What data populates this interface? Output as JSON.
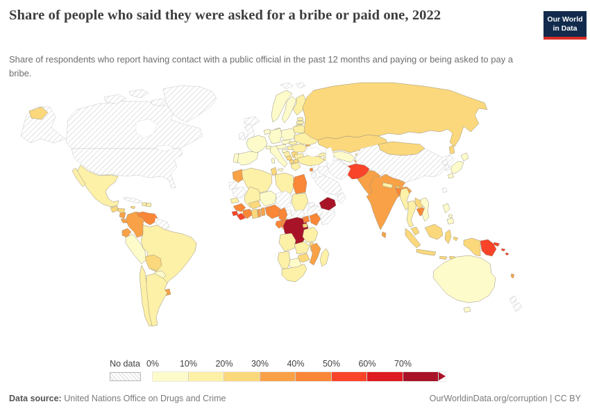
{
  "header": {
    "title": "Share of people who said they were asked for a bribe or paid one, 2022",
    "subtitle": "Share of respondents who report having contact with a public official in the past 12 months and paying or being asked to pay a bribe.",
    "logo": {
      "line1": "Our World",
      "line2": "in Data",
      "bg": "#122B4D",
      "accent": "#D92D27"
    }
  },
  "footer": {
    "source_label": "Data source:",
    "source_value": "United Nations Office on Drugs and Crime",
    "right_text": "OurWorldinData.org/corruption | CC BY"
  },
  "chart_data": {
    "type": "heatmap",
    "subtype": "choropleth-world-map",
    "title": "Share of people who said they were asked for a bribe or paid one, 2022",
    "unit": "%",
    "legend": {
      "position": "bottom",
      "no_data_label": "No data",
      "ticks": [
        "0%",
        "10%",
        "20%",
        "30%",
        "40%",
        "50%",
        "60%",
        "70%"
      ],
      "bins": [
        {
          "label": "0-10%",
          "color": "#FEFBCB"
        },
        {
          "label": "10-20%",
          "color": "#FDF0A7"
        },
        {
          "label": "20-30%",
          "color": "#FBD87B"
        },
        {
          "label": "30-40%",
          "color": "#F9A147"
        },
        {
          "label": "40-50%",
          "color": "#FA8637"
        },
        {
          "label": "50-60%",
          "color": "#F94429"
        },
        {
          "label": "60-70%",
          "color": "#DE1B21"
        },
        {
          "label": "70%+",
          "color": "#A91328"
        }
      ]
    },
    "regions": [
      {
        "name": "Canada",
        "bin": "No data"
      },
      {
        "name": "United States",
        "bin": "No data"
      },
      {
        "name": "Greenland",
        "bin": "No data"
      },
      {
        "name": "Iceland",
        "bin": "No data"
      },
      {
        "name": "Svalbard",
        "bin": "No data"
      },
      {
        "name": "United Kingdom",
        "bin": "No data"
      },
      {
        "name": "Ireland",
        "bin": "No data"
      },
      {
        "name": "Cuba",
        "bin": "No data"
      },
      {
        "name": "Guyana",
        "bin": "No data"
      },
      {
        "name": "Western Sahara",
        "bin": "No data"
      },
      {
        "name": "Mauritania",
        "bin": "No data"
      },
      {
        "name": "Chad",
        "bin": "No data"
      },
      {
        "name": "Central African Republic",
        "bin": "No data"
      },
      {
        "name": "South Sudan",
        "bin": "No data"
      },
      {
        "name": "Eritrea",
        "bin": "No data"
      },
      {
        "name": "Ethiopia",
        "bin": "No data"
      },
      {
        "name": "Somalia",
        "bin": "No data"
      },
      {
        "name": "Syria",
        "bin": "No data"
      },
      {
        "name": "Israel",
        "bin": "No data"
      },
      {
        "name": "Iraq",
        "bin": "No data"
      },
      {
        "name": "Saudi Arabia",
        "bin": "No data"
      },
      {
        "name": "Oman",
        "bin": "No data"
      },
      {
        "name": "Iran",
        "bin": "No data"
      },
      {
        "name": "Turkmenistan",
        "bin": "No data"
      },
      {
        "name": "China",
        "bin": "No data"
      },
      {
        "name": "North Korea",
        "bin": "No data"
      },
      {
        "name": "South Korea",
        "bin": "No data"
      },
      {
        "name": "Taiwan",
        "bin": "No data"
      },
      {
        "name": "New Zealand",
        "bin": "No data"
      },
      {
        "name": "Peru",
        "bin": "0-10%"
      },
      {
        "name": "Paraguay",
        "bin": "0-10%"
      },
      {
        "name": "Niger",
        "bin": "0-10%"
      },
      {
        "name": "Botswana",
        "bin": "0-10%"
      },
      {
        "name": "Vietnam",
        "bin": "0-10%"
      },
      {
        "name": "Philippines",
        "bin": "0-10%"
      },
      {
        "name": "Japan",
        "bin": "0-10%"
      },
      {
        "name": "Australia",
        "bin": "0-10%"
      },
      {
        "name": "France",
        "bin": "0-10%"
      },
      {
        "name": "Spain",
        "bin": "0-10%"
      },
      {
        "name": "Portugal",
        "bin": "0-10%"
      },
      {
        "name": "Germany",
        "bin": "0-10%"
      },
      {
        "name": "Netherlands",
        "bin": "0-10%"
      },
      {
        "name": "Denmark",
        "bin": "0-10%"
      },
      {
        "name": "Norway",
        "bin": "0-10%"
      },
      {
        "name": "Sweden",
        "bin": "0-10%"
      },
      {
        "name": "Poland",
        "bin": "0-10%"
      },
      {
        "name": "Czechia",
        "bin": "0-10%"
      },
      {
        "name": "Austria",
        "bin": "0-10%"
      },
      {
        "name": "Switzerland",
        "bin": "0-10%"
      },
      {
        "name": "Italy",
        "bin": "0-10%"
      },
      {
        "name": "Slovenia",
        "bin": "0-10%"
      },
      {
        "name": "Uzbekistan",
        "bin": "0-10%"
      },
      {
        "name": "Mexico",
        "bin": "10-20%"
      },
      {
        "name": "Brazil",
        "bin": "10-20%"
      },
      {
        "name": "Argentina",
        "bin": "10-20%"
      },
      {
        "name": "Chile",
        "bin": "10-20%"
      },
      {
        "name": "Dominican Republic",
        "bin": "10-20%"
      },
      {
        "name": "Haiti",
        "bin": "10-20%"
      },
      {
        "name": "Finland",
        "bin": "10-20%"
      },
      {
        "name": "Estonia",
        "bin": "10-20%"
      },
      {
        "name": "Latvia",
        "bin": "10-20%"
      },
      {
        "name": "Lithuania",
        "bin": "10-20%"
      },
      {
        "name": "Belarus",
        "bin": "10-20%"
      },
      {
        "name": "Ukraine",
        "bin": "10-20%"
      },
      {
        "name": "Romania",
        "bin": "10-20%"
      },
      {
        "name": "Bulgaria",
        "bin": "10-20%"
      },
      {
        "name": "Greece",
        "bin": "10-20%"
      },
      {
        "name": "Croatia",
        "bin": "10-20%"
      },
      {
        "name": "Turkey",
        "bin": "10-20%"
      },
      {
        "name": "Georgia",
        "bin": "10-20%"
      },
      {
        "name": "Armenia",
        "bin": "10-20%"
      },
      {
        "name": "Azerbaijan",
        "bin": "10-20%"
      },
      {
        "name": "Slovakia",
        "bin": "10-20%"
      },
      {
        "name": "Hungary",
        "bin": "10-20%"
      },
      {
        "name": "Algeria",
        "bin": "10-20%"
      },
      {
        "name": "Libya",
        "bin": "10-20%"
      },
      {
        "name": "Mali",
        "bin": "10-20%"
      },
      {
        "name": "Senegal",
        "bin": "10-20%"
      },
      {
        "name": "Sudan",
        "bin": "10-20%"
      },
      {
        "name": "Angola",
        "bin": "10-20%"
      },
      {
        "name": "Zambia",
        "bin": "10-20%"
      },
      {
        "name": "Tanzania",
        "bin": "10-20%"
      },
      {
        "name": "Namibia",
        "bin": "10-20%"
      },
      {
        "name": "South Africa",
        "bin": "10-20%"
      },
      {
        "name": "Madagascar",
        "bin": "10-20%"
      },
      {
        "name": "Nepal",
        "bin": "10-20%"
      },
      {
        "name": "Myanmar",
        "bin": "10-20%"
      },
      {
        "name": "Thailand",
        "bin": "10-20%"
      },
      {
        "name": "Guatemala",
        "bin": "20-30%"
      },
      {
        "name": "Honduras",
        "bin": "20-30%"
      },
      {
        "name": "Jamaica",
        "bin": "20-30%"
      },
      {
        "name": "Bolivia",
        "bin": "20-30%"
      },
      {
        "name": "Russia",
        "bin": "20-30%"
      },
      {
        "name": "Kazakhstan",
        "bin": "20-30%"
      },
      {
        "name": "Kyrgyzstan",
        "bin": "20-30%"
      },
      {
        "name": "Mongolia",
        "bin": "20-30%"
      },
      {
        "name": "Serbia",
        "bin": "20-30%"
      },
      {
        "name": "Bosnia and Herzegovina",
        "bin": "20-30%"
      },
      {
        "name": "Albania",
        "bin": "20-30%"
      },
      {
        "name": "North Macedonia",
        "bin": "20-30%"
      },
      {
        "name": "Tunisia",
        "bin": "20-30%"
      },
      {
        "name": "Burkina Faso",
        "bin": "20-30%"
      },
      {
        "name": "Ghana",
        "bin": "20-30%"
      },
      {
        "name": "Zimbabwe",
        "bin": "20-30%"
      },
      {
        "name": "Malawi",
        "bin": "20-30%"
      },
      {
        "name": "Rwanda",
        "bin": "20-30%"
      },
      {
        "name": "Laos",
        "bin": "20-30%"
      },
      {
        "name": "Malaysia",
        "bin": "20-30%"
      },
      {
        "name": "Indonesia",
        "bin": "20-30%"
      },
      {
        "name": "Bhutan",
        "bin": "20-30%"
      },
      {
        "name": "Nicaragua",
        "bin": "30-40%"
      },
      {
        "name": "Costa Rica",
        "bin": "30-40%"
      },
      {
        "name": "Colombia",
        "bin": "30-40%"
      },
      {
        "name": "Ecuador",
        "bin": "30-40%"
      },
      {
        "name": "Uruguay",
        "bin": "30-40%"
      },
      {
        "name": "Moldova",
        "bin": "30-40%"
      },
      {
        "name": "Morocco",
        "bin": "30-40%"
      },
      {
        "name": "Togo",
        "bin": "30-40%"
      },
      {
        "name": "Benin",
        "bin": "30-40%"
      },
      {
        "name": "Mozambique",
        "bin": "30-40%"
      },
      {
        "name": "Tajikistan",
        "bin": "30-40%"
      },
      {
        "name": "Pakistan",
        "bin": "30-40%"
      },
      {
        "name": "India",
        "bin": "30-40%"
      },
      {
        "name": "Sri Lanka",
        "bin": "30-40%"
      },
      {
        "name": "Vanuatu",
        "bin": "30-40%"
      },
      {
        "name": "Panama",
        "bin": "40-50%"
      },
      {
        "name": "Venezuela",
        "bin": "40-50%"
      },
      {
        "name": "Egypt",
        "bin": "40-50%"
      },
      {
        "name": "Guinea",
        "bin": "40-50%"
      },
      {
        "name": "Côte d'Ivoire",
        "bin": "40-50%"
      },
      {
        "name": "Nigeria",
        "bin": "40-50%"
      },
      {
        "name": "Cameroon",
        "bin": "40-50%"
      },
      {
        "name": "Gabon",
        "bin": "40-50%"
      },
      {
        "name": "Congo",
        "bin": "40-50%"
      },
      {
        "name": "Uganda",
        "bin": "40-50%"
      },
      {
        "name": "Kenya",
        "bin": "40-50%"
      },
      {
        "name": "Bangladesh",
        "bin": "40-50%"
      },
      {
        "name": "Cambodia",
        "bin": "40-50%"
      },
      {
        "name": "Lebanon",
        "bin": "40-50%"
      },
      {
        "name": "Sierra Leone",
        "bin": "50-60%"
      },
      {
        "name": "Liberia",
        "bin": "50-60%"
      },
      {
        "name": "Afghanistan",
        "bin": "50-60%"
      },
      {
        "name": "Papua New Guinea",
        "bin": "50-60%"
      },
      {
        "name": "Solomon Islands",
        "bin": "50-60%"
      },
      {
        "name": "Democratic Republic of Congo",
        "bin": "70%+"
      },
      {
        "name": "Yemen",
        "bin": "70%+"
      }
    ]
  }
}
